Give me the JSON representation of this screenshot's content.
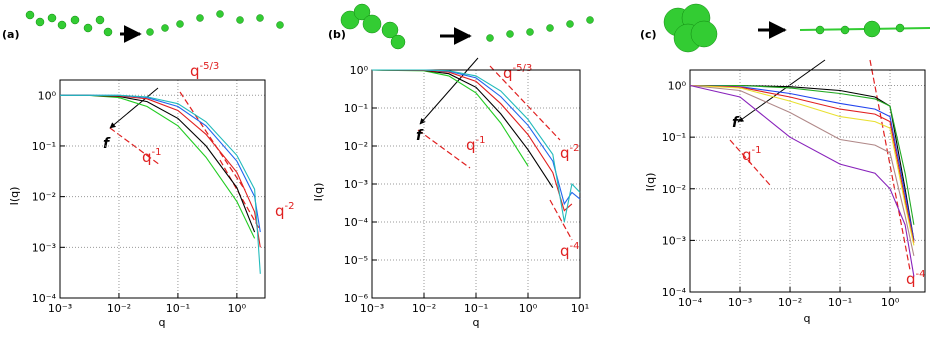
{
  "chart_data": [
    {
      "type": "line",
      "panel_label": "(a)",
      "x_label": "q",
      "y_label": "I(q)",
      "log_x": true,
      "log_y": true,
      "grid": true,
      "x": [
        0.001,
        0.003,
        0.01,
        0.03,
        0.1,
        0.3,
        1,
        2,
        2.5
      ],
      "xlim": [
        0.001,
        3
      ],
      "ylim": [
        0.0001,
        2
      ],
      "xticks": [
        {
          "value": 0.001,
          "label": "10⁻³"
        },
        {
          "value": 0.01,
          "label": "10⁻²"
        },
        {
          "value": 0.1,
          "label": "10⁻¹"
        },
        {
          "value": 1,
          "label": "10⁰"
        }
      ],
      "yticks": [
        {
          "value": 0.0001,
          "label": "10⁻⁴"
        },
        {
          "value": 0.001,
          "label": "10⁻³"
        },
        {
          "value": 0.01,
          "label": "10⁻²"
        },
        {
          "value": 0.1,
          "label": "10⁻¹"
        },
        {
          "value": 1,
          "label": "10⁰"
        }
      ],
      "series": [
        {
          "color": "#22cc22",
          "values": [
            1,
            1,
            0.9,
            0.6,
            0.25,
            0.06,
            0.008,
            0.0015,
            null
          ]
        },
        {
          "color": "#000000",
          "values": [
            1,
            1,
            0.95,
            0.75,
            0.35,
            0.1,
            0.015,
            0.002,
            null
          ]
        },
        {
          "color": "#e02020",
          "values": [
            1,
            1,
            0.97,
            0.85,
            0.5,
            0.17,
            0.03,
            0.005,
            0.001
          ]
        },
        {
          "color": "#2266ee",
          "values": [
            1,
            1,
            1,
            0.9,
            0.6,
            0.25,
            0.05,
            0.01,
            0.002
          ]
        },
        {
          "color": "#22bbbb",
          "values": [
            1,
            1,
            1,
            0.93,
            0.68,
            0.3,
            0.065,
            0.014,
            0.0003
          ]
        }
      ],
      "annotations": [
        {
          "base": "f"
        },
        {
          "base": "q",
          "exp": "-5/3"
        },
        {
          "base": "q",
          "exp": "-1"
        },
        {
          "base": "q",
          "exp": "-2"
        }
      ]
    },
    {
      "type": "line",
      "panel_label": "(b)",
      "x_label": "q",
      "y_label": "I(q)",
      "log_x": true,
      "log_y": true,
      "grid": true,
      "x": [
        0.001,
        0.01,
        0.03,
        0.1,
        0.3,
        1,
        3,
        5,
        7,
        10
      ],
      "xlim": [
        0.001,
        10
      ],
      "ylim": [
        1e-06,
        1
      ],
      "xticks": [
        {
          "value": 0.001,
          "label": "10⁻³"
        },
        {
          "value": 0.01,
          "label": "10⁻²"
        },
        {
          "value": 0.1,
          "label": "10⁻¹"
        },
        {
          "value": 1,
          "label": "10⁰"
        },
        {
          "value": 10,
          "label": "10¹"
        }
      ],
      "yticks": [
        {
          "value": 1e-06,
          "label": "10⁻⁶"
        },
        {
          "value": 1e-05,
          "label": "10⁻⁵"
        },
        {
          "value": 0.0001,
          "label": "10⁻⁴"
        },
        {
          "value": 0.001,
          "label": "10⁻³"
        },
        {
          "value": 0.01,
          "label": "10⁻²"
        },
        {
          "value": 0.1,
          "label": "10⁻¹"
        },
        {
          "value": 1,
          "label": "10⁰"
        }
      ],
      "series": [
        {
          "color": "#22cc22",
          "values": [
            1,
            0.95,
            0.7,
            0.25,
            0.04,
            0.003,
            null,
            null,
            null,
            null
          ]
        },
        {
          "color": "#000000",
          "values": [
            1,
            0.97,
            0.8,
            0.35,
            0.07,
            0.008,
            0.0008,
            null,
            null,
            null
          ]
        },
        {
          "color": "#e02020",
          "values": [
            1,
            0.98,
            0.88,
            0.5,
            0.13,
            0.02,
            0.002,
            0.0002,
            0.0003,
            null
          ]
        },
        {
          "color": "#2266ee",
          "values": [
            1,
            1,
            0.93,
            0.62,
            0.2,
            0.035,
            0.004,
            0.0003,
            0.0006,
            0.0004
          ]
        },
        {
          "color": "#22bbbb",
          "values": [
            1,
            1,
            0.95,
            0.7,
            0.28,
            0.05,
            0.006,
            0.0001,
            0.001,
            0.0006
          ]
        }
      ],
      "annotations": [
        {
          "base": "f"
        },
        {
          "base": "q",
          "exp": "-5/3"
        },
        {
          "base": "q",
          "exp": "-1"
        },
        {
          "base": "q",
          "exp": "-2"
        },
        {
          "base": "q",
          "exp": "-4"
        }
      ]
    },
    {
      "type": "line",
      "panel_label": "(c)",
      "x_label": "q",
      "y_label": "I(q)",
      "log_x": true,
      "log_y": true,
      "grid": true,
      "x": [
        0.0001,
        0.001,
        0.01,
        0.1,
        0.5,
        1,
        2,
        3
      ],
      "xlim": [
        0.0001,
        5
      ],
      "ylim": [
        0.0001,
        2
      ],
      "xticks": [
        {
          "value": 0.0001,
          "label": "10⁻⁴"
        },
        {
          "value": 0.001,
          "label": "10⁻³"
        },
        {
          "value": 0.01,
          "label": "10⁻²"
        },
        {
          "value": 0.1,
          "label": "10⁻¹"
        },
        {
          "value": 1,
          "label": "10⁰"
        }
      ],
      "yticks": [
        {
          "value": 0.0001,
          "label": "10⁻⁴"
        },
        {
          "value": 0.001,
          "label": "10⁻³"
        },
        {
          "value": 0.01,
          "label": "10⁻²"
        },
        {
          "value": 0.1,
          "label": "10⁻¹"
        },
        {
          "value": 1,
          "label": "10⁰"
        }
      ],
      "series": [
        {
          "color": "#000000",
          "values": [
            1,
            1,
            0.95,
            0.8,
            0.6,
            0.4,
            0.01,
            0.001
          ]
        },
        {
          "color": "#22aa22",
          "values": [
            1,
            1,
            0.9,
            0.7,
            0.55,
            0.4,
            0.02,
            0.002
          ]
        },
        {
          "color": "#2244ee",
          "values": [
            1,
            0.95,
            0.7,
            0.45,
            0.35,
            0.25,
            0.008,
            0.001
          ]
        },
        {
          "color": "#e02020",
          "values": [
            1,
            0.93,
            0.6,
            0.35,
            0.28,
            0.2,
            0.006,
            0.0009
          ]
        },
        {
          "color": "#e8e030",
          "values": [
            1,
            0.9,
            0.5,
            0.25,
            0.2,
            0.15,
            0.005,
            0.0008
          ]
        },
        {
          "color": "#b08888",
          "values": [
            1,
            0.8,
            0.3,
            0.09,
            0.07,
            0.05,
            0.003,
            0.0005
          ]
        },
        {
          "color": "#8822bb",
          "values": [
            1,
            0.6,
            0.1,
            0.03,
            0.02,
            0.01,
            0.002,
            0.0002
          ]
        }
      ],
      "annotations": [
        {
          "base": "f"
        },
        {
          "base": "q",
          "exp": "-1"
        },
        {
          "base": "q",
          "exp": "-4"
        }
      ]
    }
  ]
}
